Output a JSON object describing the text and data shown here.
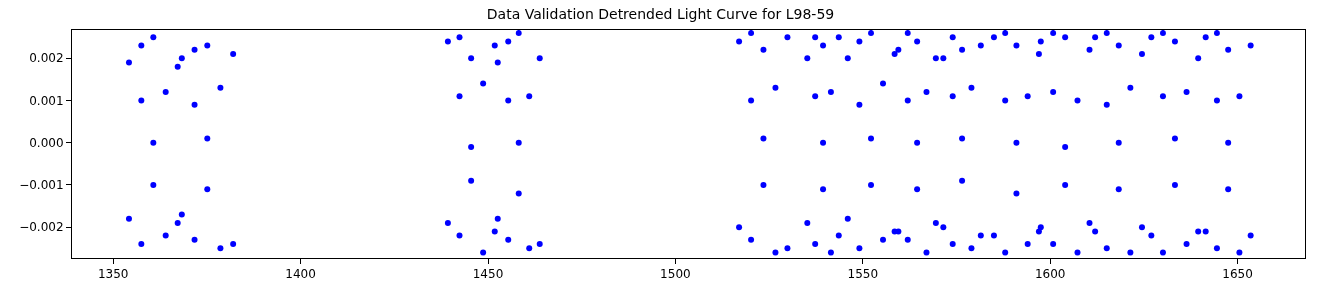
{
  "chart_data": {
    "type": "scatter",
    "title": "Data Validation Detrended Light Curve for L98-59",
    "series": [
      {
        "color": "#0000ff",
        "x": [
          1354.2,
          1354.2,
          1357.5,
          1357.5,
          1357.5,
          1360.7,
          1360.7,
          1360.7,
          1364.0,
          1364.0,
          1367.2,
          1367.2,
          1368.3,
          1368.3,
          1371.7,
          1371.7,
          1371.7,
          1375.1,
          1375.1,
          1375.1,
          1378.6,
          1378.6,
          1382.0,
          1382.0,
          1439.3,
          1439.3,
          1442.4,
          1442.4,
          1442.4,
          1445.5,
          1445.5,
          1445.5,
          1448.7,
          1448.7,
          1451.8,
          1451.8,
          1452.6,
          1452.6,
          1455.4,
          1455.4,
          1455.4,
          1458.2,
          1458.2,
          1458.2,
          1461.0,
          1461.0,
          1463.8,
          1463.8,
          1517.0,
          1517.0,
          1520.2,
          1520.2,
          1520.2,
          1523.5,
          1523.5,
          1523.5,
          1526.7,
          1526.7,
          1529.9,
          1529.9,
          1535.2,
          1535.2,
          1537.3,
          1537.3,
          1537.3,
          1539.4,
          1539.4,
          1539.4,
          1541.5,
          1541.5,
          1543.6,
          1543.6,
          1546.0,
          1546.0,
          1549.1,
          1549.1,
          1549.1,
          1552.2,
          1552.2,
          1552.2,
          1555.4,
          1555.4,
          1558.5,
          1558.5,
          1559.5,
          1559.5,
          1562.0,
          1562.0,
          1562.0,
          1564.5,
          1564.5,
          1564.5,
          1567.0,
          1567.0,
          1569.5,
          1569.5,
          1571.5,
          1571.5,
          1574.0,
          1574.0,
          1574.0,
          1576.5,
          1576.5,
          1576.5,
          1579.0,
          1579.0,
          1581.5,
          1581.5,
          1585.0,
          1585.0,
          1588.0,
          1588.0,
          1588.0,
          1591.0,
          1591.0,
          1591.0,
          1594.0,
          1594.0,
          1597.0,
          1597.0,
          1597.5,
          1597.5,
          1600.8,
          1600.8,
          1600.8,
          1604.0,
          1604.0,
          1604.0,
          1607.3,
          1607.3,
          1610.5,
          1610.5,
          1612.0,
          1612.0,
          1615.1,
          1615.1,
          1615.1,
          1618.3,
          1618.3,
          1618.3,
          1621.4,
          1621.4,
          1624.5,
          1624.5,
          1627.0,
          1627.0,
          1630.1,
          1630.1,
          1630.1,
          1633.3,
          1633.3,
          1633.3,
          1636.4,
          1636.4,
          1639.5,
          1639.5,
          1641.5,
          1641.5,
          1644.5,
          1644.5,
          1644.5,
          1647.5,
          1647.5,
          1647.5,
          1650.5,
          1650.5,
          1653.5,
          1653.5
        ],
        "values": [
          0.0019,
          -0.0018,
          0.0023,
          -0.0024,
          0.001,
          0.0,
          -0.001,
          0.0025,
          -0.0022,
          0.0012,
          0.0018,
          -0.0019,
          0.002,
          -0.0017,
          0.0022,
          -0.0023,
          0.0009,
          0.0001,
          -0.0011,
          0.0023,
          -0.0025,
          0.0013,
          0.0021,
          -0.0024,
          0.0024,
          -0.0019,
          0.0025,
          -0.0022,
          0.0011,
          -0.0001,
          -0.0009,
          0.002,
          -0.0026,
          0.0014,
          0.0023,
          -0.0021,
          0.0019,
          -0.0018,
          0.0024,
          -0.0023,
          0.001,
          0.0,
          -0.0012,
          0.0026,
          -0.0025,
          0.0011,
          0.002,
          -0.0024,
          0.0024,
          -0.002,
          0.0026,
          -0.0023,
          0.001,
          0.0001,
          -0.001,
          0.0022,
          -0.0026,
          0.0013,
          0.0025,
          -0.0025,
          0.002,
          -0.0019,
          0.0025,
          -0.0024,
          0.0011,
          0.0,
          -0.0011,
          0.0023,
          -0.0026,
          0.0012,
          0.0025,
          -0.0022,
          0.002,
          -0.0018,
          0.0024,
          -0.0025,
          0.0009,
          0.0001,
          -0.001,
          0.0026,
          -0.0023,
          0.0014,
          0.0021,
          -0.0021,
          0.0022,
          -0.0021,
          0.0026,
          -0.0023,
          0.001,
          0.0,
          -0.0011,
          0.0024,
          -0.0026,
          0.0012,
          0.002,
          -0.0019,
          0.002,
          -0.002,
          0.0025,
          -0.0024,
          0.0011,
          0.0001,
          -0.0009,
          0.0022,
          -0.0025,
          0.0013,
          0.0023,
          -0.0022,
          0.0025,
          -0.0022,
          0.0026,
          -0.0026,
          0.001,
          0.0,
          -0.0012,
          0.0023,
          -0.0024,
          0.0011,
          0.0021,
          -0.0021,
          0.0024,
          -0.002,
          0.0026,
          -0.0024,
          0.0012,
          -0.0001,
          -0.001,
          0.0025,
          -0.0026,
          0.001,
          0.0022,
          -0.0019,
          0.0025,
          -0.0021,
          0.0026,
          -0.0025,
          0.0009,
          0.0,
          -0.0011,
          0.0023,
          -0.0026,
          0.0013,
          0.0021,
          -0.002,
          0.0025,
          -0.0022,
          0.0026,
          -0.0026,
          0.0011,
          0.0001,
          -0.001,
          0.0024,
          -0.0024,
          0.0012,
          0.002,
          -0.0021,
          0.0025,
          -0.0021,
          0.0026,
          -0.0025,
          0.001,
          0.0,
          -0.0011,
          0.0022,
          -0.0026,
          0.0011,
          0.0023,
          -0.0022
        ]
      }
    ],
    "xlim": [
      1339,
      1668
    ],
    "ylim": [
      -0.00273,
      0.00267
    ],
    "xticks": [
      1350,
      1400,
      1450,
      1500,
      1550,
      1600,
      1650
    ],
    "yticks": [
      {
        "value": -0.002,
        "label": "−0.002"
      },
      {
        "value": -0.001,
        "label": "−0.001"
      },
      {
        "value": 0,
        "label": "0.000"
      },
      {
        "value": 0.001,
        "label": "0.001"
      },
      {
        "value": 0.002,
        "label": "0.002"
      }
    ],
    "marker": "circle",
    "grid": false,
    "legend": false
  }
}
